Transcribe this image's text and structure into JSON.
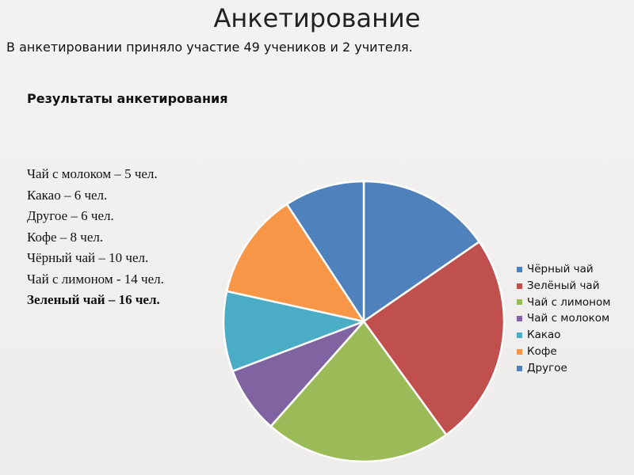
{
  "page": {
    "title": "Анкетирование",
    "subtitle": "В анкетировании приняло участие 49 учеников и 2 учителя.",
    "section_heading": "Результаты анкетирования",
    "results": [
      "Чай с молоком – 5 чел.",
      "Какао – 6 чел.",
      "Другое – 6 чел.",
      "Кофе – 8 чел.",
      "Чёрный чай – 10 чел.",
      "Чай с лимоном - 14 чел.",
      "Зеленый чай – 16 чел."
    ]
  },
  "chart_data": {
    "type": "pie",
    "categories": [
      "Чёрный чай",
      "Зелёный чай",
      "Чай с лимоном",
      "Чай с молоком",
      "Какао",
      "Кофе",
      "Другое"
    ],
    "values": [
      10,
      16,
      14,
      5,
      6,
      8,
      6
    ],
    "colors": [
      "#4f81bd",
      "#c0504d",
      "#9bbb59",
      "#8064a2",
      "#4bacc6",
      "#f79646",
      "#4f81bd"
    ],
    "start_angle_deg": 0,
    "direction": "clockwise",
    "legend_position": "right"
  }
}
